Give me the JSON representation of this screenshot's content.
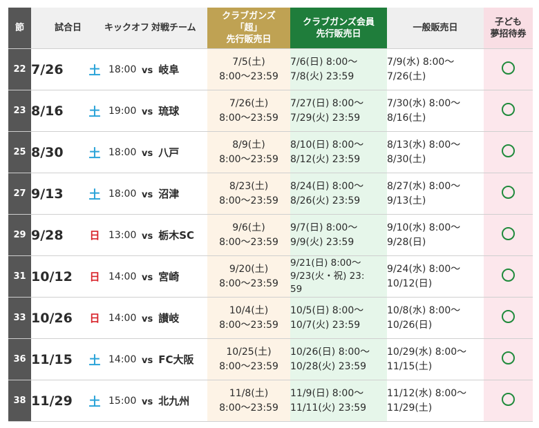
{
  "headers": {
    "section": "節",
    "date": "試合日",
    "kickoff": "キックオフ",
    "opponent": "対戦チーム",
    "super_presale": [
      "クラブガンズ",
      "「超」",
      "先行販売日"
    ],
    "member_presale": [
      "クラブガンズ会員",
      "先行販売日"
    ],
    "general_sale": "一般販売日",
    "kids_invite": [
      "子ども",
      "夢招待券"
    ]
  },
  "vs_label": "vs",
  "kids_mark": "○",
  "colors": {
    "super_presale_header": "#bfa253",
    "member_presale_header": "#1f7d3b",
    "kids_header": "#f9dee4",
    "saturday": "#2aa3d8",
    "sunday": "#d8232a"
  },
  "rows": [
    {
      "section": "22",
      "date": "7/26",
      "day": "土",
      "kickoff": "18:00",
      "opponent": "岐阜",
      "super": [
        "7/5(土)",
        "8:00〜23:59"
      ],
      "member": [
        "7/6(日) 8:00〜",
        "7/8(火) 23:59"
      ],
      "general": [
        "7/9(水) 8:00〜",
        "7/26(土)"
      ]
    },
    {
      "section": "23",
      "date": "8/16",
      "day": "土",
      "kickoff": "19:00",
      "opponent": "琉球",
      "super": [
        "7/26(土)",
        "8:00〜23:59"
      ],
      "member": [
        "7/27(日) 8:00〜",
        "7/29(火) 23:59"
      ],
      "general": [
        "7/30(水) 8:00〜",
        "8/16(土)"
      ]
    },
    {
      "section": "25",
      "date": "8/30",
      "day": "土",
      "kickoff": "18:00",
      "opponent": "八戸",
      "super": [
        "8/9(土)",
        "8:00〜23:59"
      ],
      "member": [
        "8/10(日) 8:00〜",
        "8/12(火) 23:59"
      ],
      "general": [
        "8/13(水) 8:00〜",
        "8/30(土)"
      ]
    },
    {
      "section": "27",
      "date": "9/13",
      "day": "土",
      "kickoff": "18:00",
      "opponent": "沼津",
      "super": [
        "8/23(土)",
        "8:00〜23:59"
      ],
      "member": [
        "8/24(日) 8:00〜",
        "8/26(火) 23:59"
      ],
      "general": [
        "8/27(水) 8:00〜",
        "9/13(土)"
      ]
    },
    {
      "section": "29",
      "date": "9/28",
      "day": "日",
      "kickoff": "13:00",
      "opponent": "栃木SC",
      "super": [
        "9/6(土)",
        "8:00〜23:59"
      ],
      "member": [
        "9/7(日) 8:00〜",
        "9/9(火) 23:59"
      ],
      "general": [
        "9/10(水) 8:00〜",
        "9/28(日)"
      ]
    },
    {
      "section": "31",
      "date": "10/12",
      "day": "日",
      "kickoff": "14:00",
      "opponent": "宮崎",
      "super": [
        "9/20(土)",
        "8:00〜23:59"
      ],
      "member": [
        "9/21(日) 8:00〜",
        "9/23(火・祝) 23:",
        "59"
      ],
      "general": [
        "9/24(水) 8:00〜",
        "10/12(日)"
      ]
    },
    {
      "section": "33",
      "date": "10/26",
      "day": "日",
      "kickoff": "14:00",
      "opponent": "讃岐",
      "super": [
        "10/4(土)",
        "8:00〜23:59"
      ],
      "member": [
        "10/5(日) 8:00〜",
        "10/7(火) 23:59"
      ],
      "general": [
        "10/8(水) 8:00〜",
        "10/26(日)"
      ]
    },
    {
      "section": "36",
      "date": "11/15",
      "day": "土",
      "kickoff": "14:00",
      "opponent": "FC大阪",
      "super": [
        "10/25(土)",
        "8:00〜23:59"
      ],
      "member": [
        "10/26(日) 8:00〜",
        "10/28(火) 23:59"
      ],
      "general": [
        "10/29(水) 8:00〜",
        "11/15(土)"
      ]
    },
    {
      "section": "38",
      "date": "11/29",
      "day": "土",
      "kickoff": "15:00",
      "opponent": "北九州",
      "super": [
        "11/8(土)",
        "8:00〜23:59"
      ],
      "member": [
        "11/9(日) 8:00〜",
        "11/11(火) 23:59"
      ],
      "general": [
        "11/12(水) 8:00〜",
        "11/29(土)"
      ]
    }
  ]
}
